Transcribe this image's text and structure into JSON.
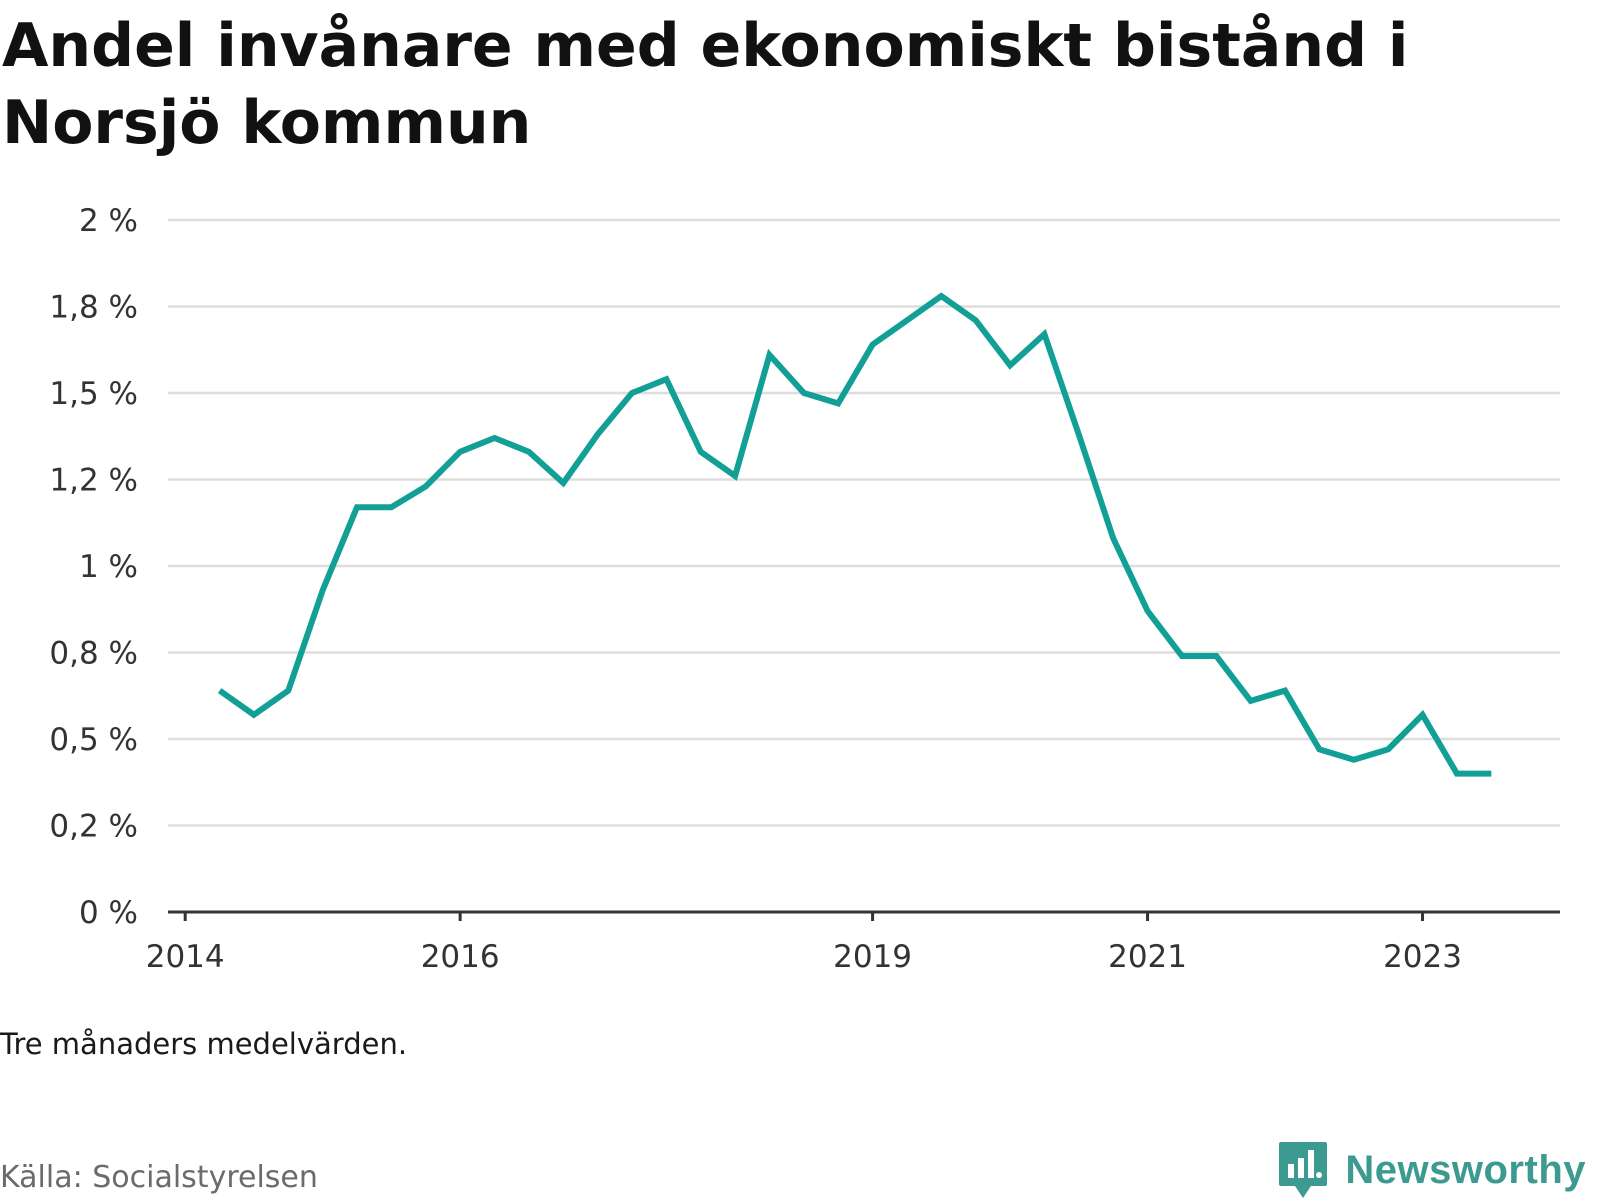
{
  "title": "Andel invånare med ekonomiskt bistånd i Norsjö kommun",
  "note": "Tre månaders medelvärden.",
  "source": "Källa: Socialstyrelsen",
  "brand": "Newsworthy",
  "colors": {
    "line": "#12a096",
    "grid": "#dddddd",
    "axis": "#333333",
    "brand": "#3d9a90"
  },
  "chart_data": {
    "type": "line",
    "x_unit": "year",
    "y_unit": "%",
    "ylim": [
      0,
      2
    ],
    "grid": "horizontal",
    "y_ticks": [
      0,
      0.25,
      0.5,
      0.75,
      1,
      1.25,
      1.5,
      1.75,
      2
    ],
    "y_tick_labels": [
      "0 %",
      "0,2 %",
      "0,5 %",
      "0,8 %",
      "1 %",
      "1,2 %",
      "1,5 %",
      "1,8 %",
      "2 %"
    ],
    "x_ticks": [
      2014,
      2016,
      2019,
      2021,
      2023
    ],
    "x_tick_labels": [
      "2014",
      "2016",
      "2019",
      "2021",
      "2023"
    ],
    "xlim": [
      2013.875,
      2024.0
    ],
    "series": [
      {
        "x": [
          2014.25,
          2014.5,
          2014.75,
          2015.0,
          2015.25,
          2015.5,
          2015.75,
          2016.0,
          2016.25,
          2016.5,
          2016.75,
          2017.0,
          2017.25,
          2017.5,
          2017.75,
          2018.0,
          2018.25,
          2018.5,
          2018.75,
          2019.0,
          2019.25,
          2019.5,
          2019.75,
          2020.0,
          2020.25,
          2020.5,
          2020.75,
          2021.0,
          2021.25,
          2021.5,
          2021.75,
          2022.0,
          2022.25,
          2022.5,
          2022.75,
          2023.0,
          2023.25,
          2023.5
        ],
        "values": [
          0.64,
          0.57,
          0.64,
          0.93,
          1.17,
          1.17,
          1.23,
          1.33,
          1.37,
          1.33,
          1.24,
          1.38,
          1.5,
          1.54,
          1.33,
          1.26,
          1.61,
          1.5,
          1.47,
          1.64,
          1.71,
          1.78,
          1.71,
          1.58,
          1.67,
          1.38,
          1.08,
          0.87,
          0.74,
          0.74,
          0.61,
          0.64,
          0.47,
          0.44,
          0.47,
          0.57,
          0.4,
          0.4
        ]
      }
    ]
  }
}
